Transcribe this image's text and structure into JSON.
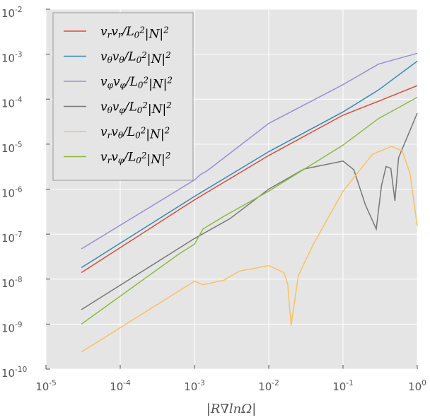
{
  "chart_data": {
    "type": "line",
    "xlabel": "|R∇lnΩ|",
    "xscale": "log",
    "yscale": "log",
    "grid": true,
    "legend": "upper left",
    "xlim": [
      1e-05,
      1
    ],
    "ylim": [
      1e-10,
      0.01
    ],
    "xticks": [
      {
        "value": 1e-05,
        "label": "10^{-5}"
      },
      {
        "value": 0.0001,
        "label": "10^{-4}"
      },
      {
        "value": 0.001,
        "label": "10^{-3}"
      },
      {
        "value": 0.01,
        "label": "10^{-2}"
      },
      {
        "value": 0.1,
        "label": "10^{-1}"
      },
      {
        "value": 1,
        "label": "10^{0}"
      }
    ],
    "yticks": [
      {
        "value": 1e-10,
        "label": "10^{-10}"
      },
      {
        "value": 1e-09,
        "label": "10^{-9}"
      },
      {
        "value": 1e-08,
        "label": "10^{-8}"
      },
      {
        "value": 1e-07,
        "label": "10^{-7}"
      },
      {
        "value": 1e-06,
        "label": "10^{-6}"
      },
      {
        "value": 1e-05,
        "label": "10^{-5}"
      },
      {
        "value": 0.0001,
        "label": "10^{-4}"
      },
      {
        "value": 0.001,
        "label": "10^{-3}"
      },
      {
        "value": 0.01,
        "label": "10^{-2}"
      }
    ],
    "series": [
      {
        "name": "v_rv_r/L_0^2|N|^2",
        "color": "#e24a33",
        "x": [
          3e-05,
          0.001,
          0.01,
          0.1,
          0.3,
          1
        ],
        "values": [
          1.4e-08,
          5.8e-07,
          5.6e-06,
          4.4e-05,
          9e-05,
          0.0002
        ]
      },
      {
        "name": "v_θv_θ/L_0^2|N|^2",
        "color": "#348abd",
        "x": [
          3e-05,
          0.001,
          0.01,
          0.1,
          0.3,
          1
        ],
        "values": [
          1.8e-08,
          6.9e-07,
          6.8e-06,
          5.2e-05,
          0.00016,
          0.0007
        ]
      },
      {
        "name": "v_φv_φ/L_0^2|N|^2",
        "color": "#988ed5",
        "x": [
          3e-05,
          0.001,
          0.0012,
          0.0015,
          0.01,
          0.1,
          0.3,
          1
        ],
        "values": [
          4.7e-08,
          1.6e-06,
          2.1e-06,
          2.6e-06,
          2.9e-05,
          0.00021,
          0.0006,
          0.00105
        ]
      },
      {
        "name": "v_θv_φ/L_0^2|N|^2",
        "color": "#777777",
        "x": [
          3e-05,
          0.001,
          0.003,
          0.01,
          0.03,
          0.1,
          0.14,
          0.2,
          0.28,
          0.33,
          0.38,
          0.44,
          0.5,
          0.56,
          0.7,
          1
        ],
        "values": [
          2.1e-09,
          8e-08,
          2.2e-07,
          1e-06,
          2.8e-06,
          4.2e-06,
          2.7e-06,
          4.5e-07,
          1.3e-07,
          1.2e-06,
          3.2e-06,
          2.9e-06,
          5.5e-07,
          5e-06,
          1.2e-05,
          4.9e-05
        ]
      },
      {
        "name": "v_rv_θ/L_0^2|N|^2",
        "color": "#fbc15e",
        "x": [
          3e-05,
          0.001,
          0.0013,
          0.0025,
          0.004,
          0.01,
          0.016,
          0.018,
          0.02,
          0.025,
          0.04,
          0.1,
          0.25,
          0.45,
          0.63,
          0.8,
          1
        ],
        "values": [
          2.4e-10,
          9e-09,
          7.5e-09,
          9.5e-09,
          1.5e-08,
          2e-08,
          1.4e-08,
          7.8e-09,
          9.3e-10,
          1.2e-08,
          6e-08,
          9e-07,
          6e-06,
          8.9e-06,
          7e-06,
          2.2e-06,
          1.5e-07
        ]
      },
      {
        "name": "v_rv_φ/L_0^2|N|^2",
        "color": "#8eba42",
        "x": [
          3e-05,
          0.0006,
          0.001,
          0.0013,
          0.0016,
          0.0025,
          0.01,
          0.1,
          0.3,
          1
        ],
        "values": [
          1e-09,
          3.5e-08,
          6e-08,
          1.3e-07,
          1.6e-07,
          2.5e-07,
          9e-07,
          9.5e-06,
          3.7e-05,
          0.00011
        ]
      }
    ]
  }
}
